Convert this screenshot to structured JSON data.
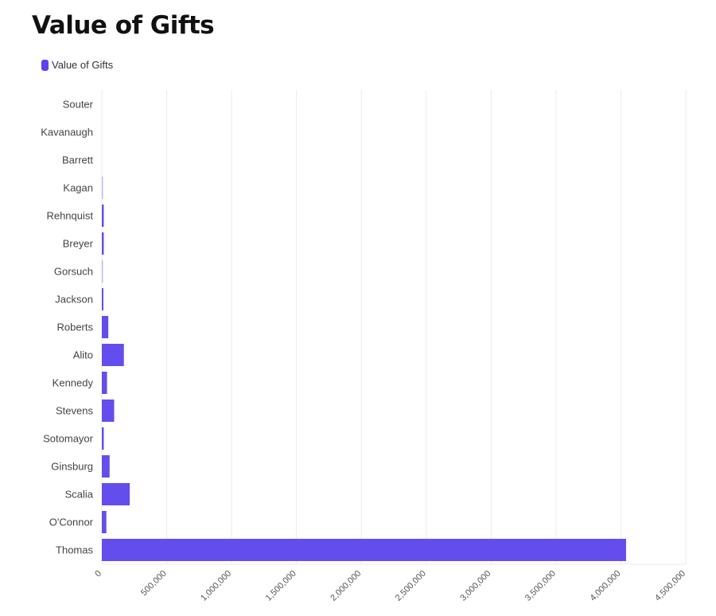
{
  "chart_data": {
    "type": "bar",
    "orientation": "horizontal",
    "title": "Value of Gifts",
    "legend": {
      "position": "top-left",
      "entries": [
        "Value of Gifts"
      ]
    },
    "series": [
      {
        "name": "Value of Gifts",
        "color": "#5b44ec",
        "values": [
          0,
          0,
          0,
          3000,
          15000,
          15000,
          4000,
          12000,
          50000,
          170000,
          40000,
          95000,
          15000,
          60000,
          215000,
          35000,
          4040000
        ]
      }
    ],
    "categories": [
      "Souter",
      "Kavanaugh",
      "Barrett",
      "Kagan",
      "Rehnquist",
      "Breyer",
      "Gorsuch",
      "Jackson",
      "Roberts",
      "Alito",
      "Kennedy",
      "Stevens",
      "Sotomayor",
      "Ginsburg",
      "Scalia",
      "O'Connor",
      "Thomas"
    ],
    "xlim": [
      0,
      4500000
    ],
    "x_ticks": [
      "0",
      "500,000",
      "1,000,000",
      "1,500,000",
      "2,000,000",
      "2,500,000",
      "3,000,000",
      "3,500,000",
      "4,000,000",
      "4,500,000"
    ],
    "x_tick_values": [
      0,
      500000,
      1000000,
      1500000,
      2000000,
      2500000,
      3000000,
      3500000,
      4000000,
      4500000
    ],
    "xlabel": "",
    "ylabel": "",
    "grid": true
  }
}
